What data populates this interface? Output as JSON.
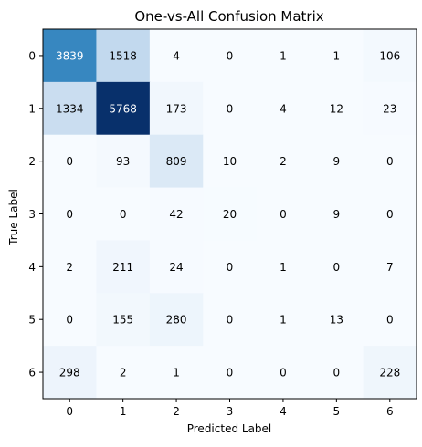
{
  "chart_data": {
    "type": "heatmap",
    "title": "One-vs-All Confusion Matrix",
    "xlabel": "Predicted Label",
    "ylabel": "True Label",
    "x_categories": [
      "0",
      "1",
      "2",
      "3",
      "4",
      "5",
      "6"
    ],
    "y_categories": [
      "0",
      "1",
      "2",
      "3",
      "4",
      "5",
      "6"
    ],
    "values": [
      [
        3839,
        1518,
        4,
        0,
        1,
        1,
        106
      ],
      [
        1334,
        5768,
        173,
        0,
        4,
        12,
        23
      ],
      [
        0,
        93,
        809,
        10,
        2,
        9,
        0
      ],
      [
        0,
        0,
        42,
        20,
        0,
        9,
        0
      ],
      [
        2,
        211,
        24,
        0,
        1,
        0,
        7
      ],
      [
        0,
        155,
        280,
        0,
        1,
        13,
        0
      ],
      [
        298,
        2,
        1,
        0,
        0,
        0,
        228
      ]
    ],
    "colormap": "Blues",
    "value_range": [
      0,
      5768
    ],
    "grid": false
  }
}
